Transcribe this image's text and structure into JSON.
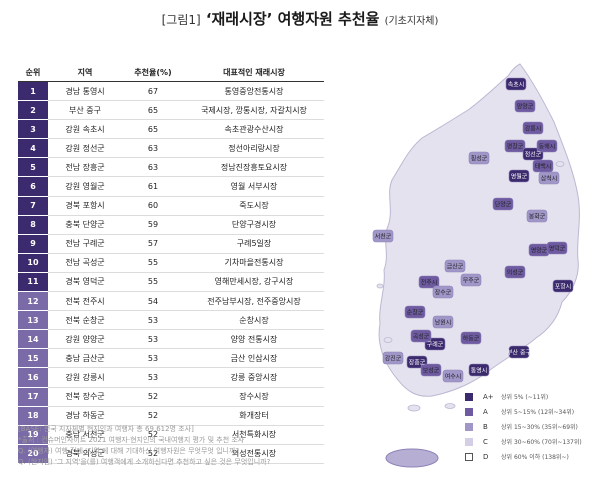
{
  "title": {
    "fig": "[그림1]",
    "main": "‘재래시장’ 여행자원 추천율",
    "sub": "(기초지자체)"
  },
  "table": {
    "headers": [
      "순위",
      "지역",
      "추천율(%)",
      "대표적인 재래시장"
    ],
    "rows": [
      {
        "rank": "1",
        "region": "경남 통영시",
        "rate": "67",
        "market": "통영중앙전통시장"
      },
      {
        "rank": "2",
        "region": "부산 중구",
        "rate": "65",
        "market": "국제시장, 깡통시장, 자갈치시장"
      },
      {
        "rank": "3",
        "region": "강원 속초시",
        "rate": "65",
        "market": "속초관광수산시장"
      },
      {
        "rank": "4",
        "region": "강원 정선군",
        "rate": "63",
        "market": "정선아리랑시장"
      },
      {
        "rank": "5",
        "region": "전남 장흥군",
        "rate": "63",
        "market": "정남진장흥토요시장"
      },
      {
        "rank": "6",
        "region": "강원 영월군",
        "rate": "61",
        "market": "영월 서부시장"
      },
      {
        "rank": "7",
        "region": "경북 포항시",
        "rate": "60",
        "market": "죽도시장"
      },
      {
        "rank": "8",
        "region": "충북 단양군",
        "rate": "59",
        "market": "단양구경시장"
      },
      {
        "rank": "9",
        "region": "전남 구례군",
        "rate": "57",
        "market": "구례5일장"
      },
      {
        "rank": "10",
        "region": "전남 곡성군",
        "rate": "55",
        "market": "기차마을전통시장"
      },
      {
        "rank": "11",
        "region": "경북 영덕군",
        "rate": "55",
        "market": "영해만세시장, 강구시장"
      },
      {
        "rank": "12",
        "region": "전북 전주시",
        "rate": "54",
        "market": "전주남부시장, 전주중앙시장"
      },
      {
        "rank": "13",
        "region": "전북 순창군",
        "rate": "53",
        "market": "순창시장"
      },
      {
        "rank": "14",
        "region": "강원 양양군",
        "rate": "53",
        "market": "양양 전통시장"
      },
      {
        "rank": "15",
        "region": "충남 금산군",
        "rate": "53",
        "market": "금산 인삼시장"
      },
      {
        "rank": "16",
        "region": "강원 강릉시",
        "rate": "53",
        "market": "강릉 중앙시장"
      },
      {
        "rank": "17",
        "region": "전북 장수군",
        "rate": "52",
        "market": "장수시장"
      },
      {
        "rank": "18",
        "region": "경남 하동군",
        "rate": "52",
        "market": "화개장터"
      },
      {
        "rank": "19",
        "region": "충남 서천군",
        "rate": "52",
        "market": "서천특화시장"
      },
      {
        "rank": "20",
        "region": "경북 의성군",
        "rate": "52",
        "market": "의성전통시장"
      }
    ]
  },
  "notes": [
    "[BASE: 전국 지자체별 현지인과 여행자 총 69,612명 조사]",
    "*출처 : 컨슈머인사이트 2021 여행자·현지인의 국내여행지 평가 및 추천 조사",
    "Q. (여행자) 여행 전에 '지역'에 대해 기대하신 여행자원은 무엇무엇 입니까?",
    "Q. (현지인) '그 지역'을(를) 여행객에게 소개하신다면 추천하고 싶은 것은 무엇입니까?"
  ],
  "map_labels": [
    "속초시",
    "양양군",
    "강릉시",
    "횡성군",
    "평창군",
    "정선군",
    "동해시",
    "삼척시",
    "영월군",
    "태백시",
    "단양군",
    "봉화군",
    "서천군",
    "영양군",
    "영덕군",
    "포항시",
    "의성군",
    "전주시",
    "금산군",
    "장수군",
    "무주군",
    "순창군",
    "남원시",
    "구례군",
    "곡성군",
    "하동군",
    "강진군",
    "장흥군",
    "보성군",
    "통영시",
    "여수시",
    "부산 중구"
  ],
  "legend": [
    {
      "label": "A+",
      "desc": "상위 5% (~11위)",
      "color": "#3b2a6e"
    },
    {
      "label": "A",
      "desc": "상위 5~15% (12위~34위)",
      "color": "#6d5aa0"
    },
    {
      "label": "B",
      "desc": "상위 15~30% (35위~69위)",
      "color": "#a096c8"
    },
    {
      "label": "C",
      "desc": "상위 30~60% (70위~137위)",
      "color": "#d4cfe6"
    },
    {
      "label": "D",
      "desc": "상위 60% 이하 (138위~)",
      "color": "#ffffff"
    }
  ],
  "chart_data": {
    "type": "table",
    "title": "‘재래시장’ 여행자원 추천율",
    "subtitle": "(기초지자체)",
    "columns": [
      "순위",
      "지역",
      "추천율(%)",
      "대표적인 재래시장"
    ],
    "categories": [
      "경남 통영시",
      "부산 중구",
      "강원 속초시",
      "강원 정선군",
      "전남 장흥군",
      "강원 영월군",
      "경북 포항시",
      "충북 단양군",
      "전남 구례군",
      "전남 곡성군",
      "경북 영덕군",
      "전북 전주시",
      "전북 순창군",
      "강원 양양군",
      "충남 금산군",
      "강원 강릉시",
      "전북 장수군",
      "경남 하동군",
      "충남 서천군",
      "경북 의성군"
    ],
    "values": [
      67,
      65,
      65,
      63,
      63,
      61,
      60,
      59,
      57,
      55,
      55,
      54,
      53,
      53,
      53,
      53,
      52,
      52,
      52,
      52
    ]
  }
}
